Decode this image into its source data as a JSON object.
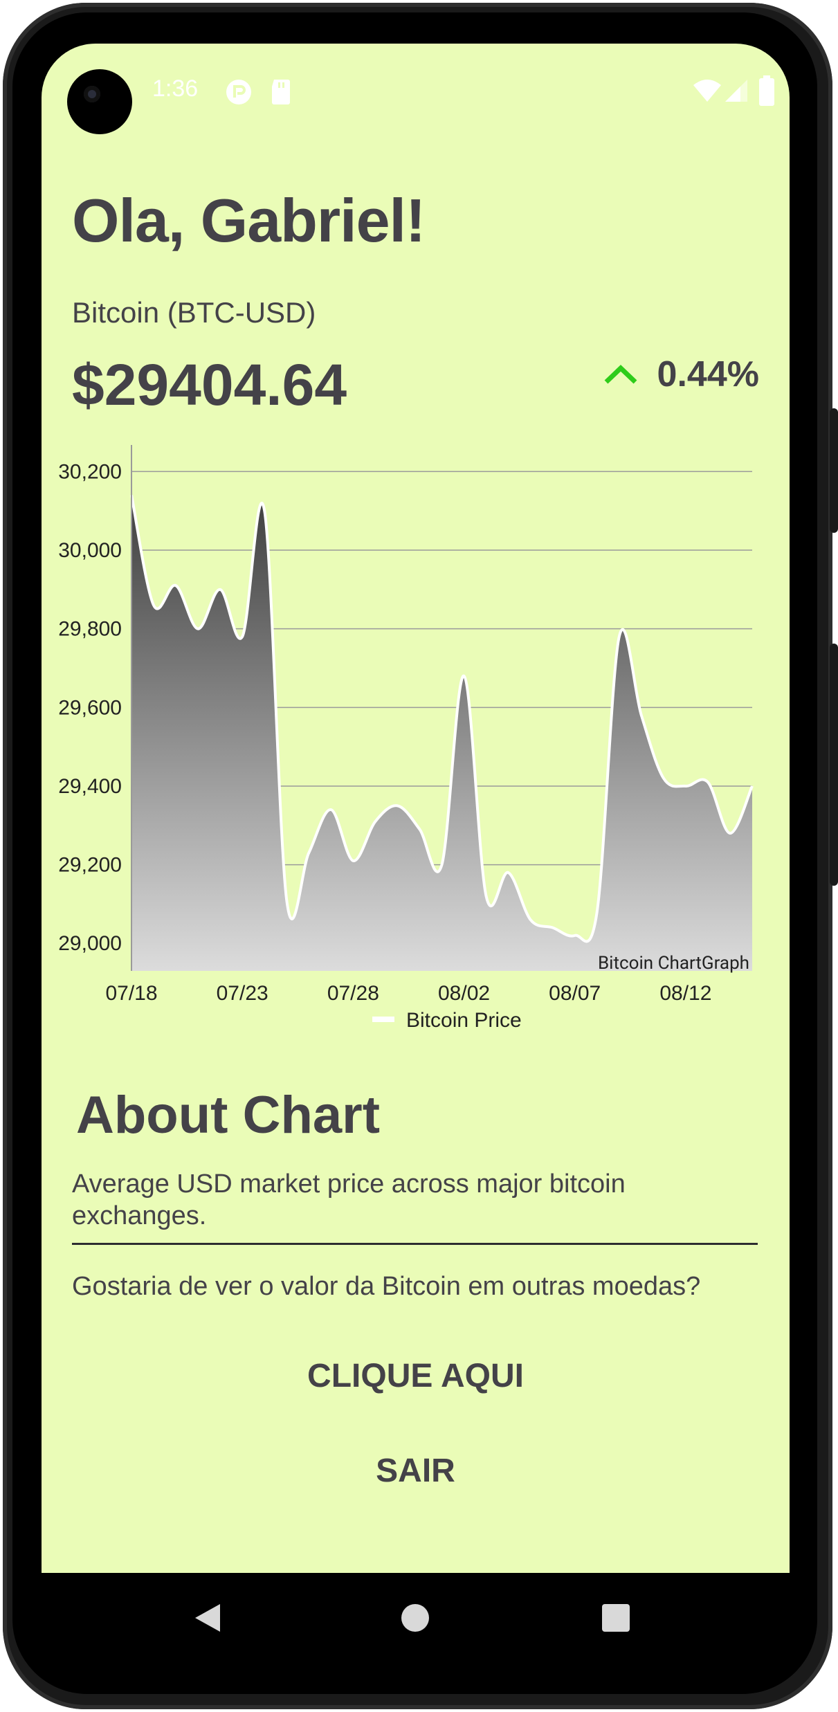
{
  "status_bar": {
    "time": "1:36"
  },
  "header": {
    "greeting": "Ola, Gabriel!"
  },
  "ticker": {
    "symbol": "Bitcoin (BTC-USD)",
    "price": "$29404.64",
    "change": "0.44%",
    "change_color": "#2ecc1a"
  },
  "chart_data": {
    "type": "area",
    "x": [
      "07/18",
      "07/19",
      "07/20",
      "07/21",
      "07/22",
      "07/23",
      "07/24",
      "07/25",
      "07/26",
      "07/27",
      "07/28",
      "07/29",
      "07/30",
      "07/31",
      "08/01",
      "08/02",
      "08/03",
      "08/04",
      "08/05",
      "08/06",
      "08/07",
      "08/08",
      "08/09",
      "08/10",
      "08/11",
      "08/12",
      "08/13",
      "08/14",
      "08/15"
    ],
    "series": [
      {
        "name": "Bitcoin Price",
        "values": [
          30140,
          29860,
          29910,
          29800,
          29900,
          29780,
          30100,
          29110,
          29230,
          29340,
          29210,
          29310,
          29350,
          29290,
          29200,
          29680,
          29120,
          29180,
          29060,
          29040,
          29020,
          29080,
          29780,
          29580,
          29420,
          29400,
          29410,
          29280,
          29400
        ]
      }
    ],
    "xticks": [
      "07/18",
      "07/23",
      "07/28",
      "08/02",
      "08/07",
      "08/12"
    ],
    "yticks": [
      "30,200",
      "30,000",
      "29,800",
      "29,600",
      "29,400",
      "29,200",
      "29,000"
    ],
    "ylim": [
      28930,
      30250
    ],
    "grid": true,
    "legend_position": "bottom-center",
    "description_label": "Bitcoin ChartGraph",
    "colors": {
      "line": "#ffffff",
      "fill_top": "#3f3f3f",
      "fill_bottom": "#dcdcdc",
      "grid": "#9a9a9a"
    }
  },
  "about": {
    "title": "About Chart",
    "text": "Average USD market price across major bitcoin exchanges."
  },
  "question": "Gostaria de ver o valor da Bitcoin em outras moedas?",
  "buttons": {
    "click_here": "CLIQUE AQUI",
    "exit": "SAIR"
  },
  "theme": {
    "background": "#eafcb7",
    "text": "#444248"
  }
}
